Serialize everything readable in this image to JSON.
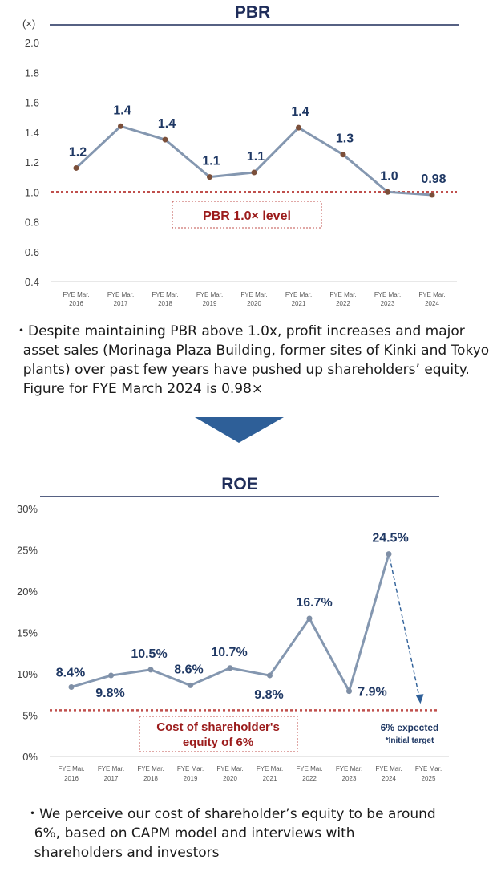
{
  "chart_data": [
    {
      "type": "line",
      "title": "PBR",
      "y_unit_label": "(×)",
      "categories": [
        "FYE Mar.\n2016",
        "FYE Mar.\n2017",
        "FYE Mar.\n2018",
        "FYE Mar.\n2019",
        "FYE Mar.\n2020",
        "FYE Mar.\n2021",
        "FYE Mar.\n2022",
        "FYE Mar.\n2023",
        "FYE Mar.\n2024"
      ],
      "values": [
        1.16,
        1.44,
        1.35,
        1.1,
        1.13,
        1.43,
        1.25,
        1.0,
        0.98
      ],
      "data_labels": [
        "1.2",
        "1.4",
        "1.4",
        "1.1",
        "1.1",
        "1.4",
        "1.3",
        "1.0",
        "0.98"
      ],
      "ylim": [
        0.4,
        2.0
      ],
      "yticks": [
        "2.0",
        "1.8",
        "1.6",
        "1.4",
        "1.2",
        "1.0",
        "0.8",
        "0.6",
        "0.4"
      ],
      "reference_line": {
        "value": 1.0,
        "label": "PBR 1.0× level",
        "color": "#c0504d"
      },
      "line_color": "#8497b0",
      "marker_color": "#7b4f3a",
      "grid": false
    },
    {
      "type": "line",
      "title": "ROE",
      "categories": [
        "FYE Mar.\n2016",
        "FYE Mar.\n2017",
        "FYE Mar.\n2018",
        "FYE Mar.\n2019",
        "FYE Mar.\n2020",
        "FYE Mar.\n2021",
        "FYE Mar.\n2022",
        "FYE Mar.\n2023",
        "FYE Mar.\n2024",
        "FYE Mar.\n2025"
      ],
      "values": [
        8.4,
        9.8,
        10.5,
        8.6,
        10.7,
        9.8,
        16.7,
        7.9,
        24.5,
        null
      ],
      "data_labels": [
        "8.4%",
        "9.8%",
        "10.5%",
        "8.6%",
        "10.7%",
        "9.8%",
        "16.7%",
        "7.9%",
        "24.5%",
        ""
      ],
      "ylim": [
        0,
        30
      ],
      "yticks": [
        "30%",
        "25%",
        "20%",
        "15%",
        "10%",
        "5%",
        "0%"
      ],
      "projection": {
        "from": "FYE Mar.\n2024",
        "to": "FYE Mar.\n2025",
        "value": 6,
        "label": "6% expected",
        "sublabel": "*Initial target"
      },
      "reference_line": {
        "value": 5.6,
        "label": "Cost of shareholder's\nequity of 6%",
        "color": "#c0504d"
      },
      "line_color": "#8497b0",
      "marker_color": "#7f8fa6",
      "grid": false
    }
  ],
  "notes": {
    "pbr": [
      "・Despite maintaining PBR above 1.0x, profit increases and major",
      "  asset sales (Morinaga Plaza Building, former sites of Kinki and Tokyo",
      "  plants) over past few years have pushed up shareholders’ equity.",
      "  Figure for FYE March 2024 is 0.98×"
    ],
    "roe": [
      "・We perceive our cost of shareholder’s equity to be around",
      "  6%, based on CAPM model and interviews with",
      "  shareholders and investors"
    ]
  },
  "colors": {
    "title_rule": "#1f2d5a",
    "label_text": "#1f3864",
    "arrow": "#2e5f98",
    "reference_box_text": "#9b1b1b"
  }
}
